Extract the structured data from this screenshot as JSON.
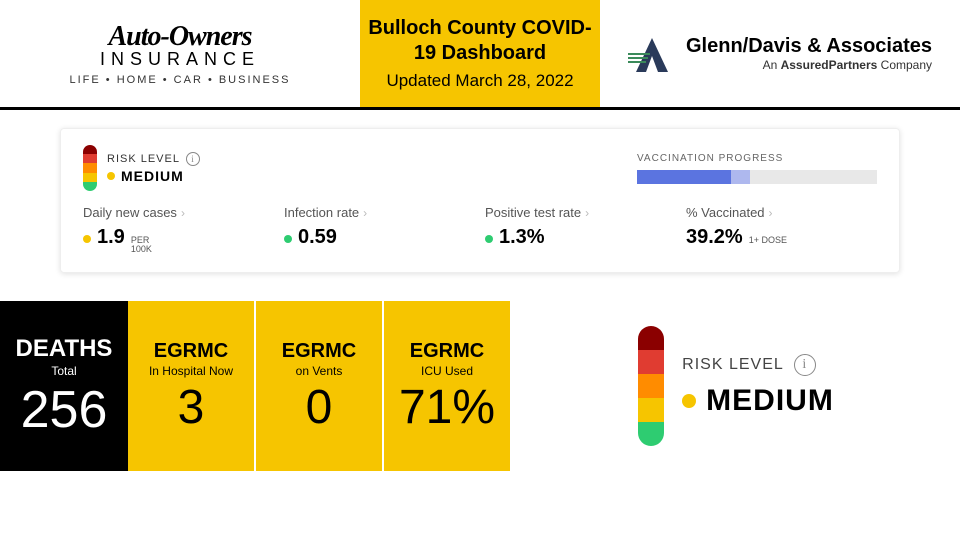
{
  "colors": {
    "accent_yellow": "#f6c500",
    "black": "#000000",
    "risk_segments": [
      "#8b0000",
      "#e03c31",
      "#ff8c00",
      "#f6c500",
      "#2ecc71"
    ],
    "vax_primary": "#5b74e0",
    "vax_secondary": "#aeb8ee",
    "vax_bg": "#e8e8e8",
    "dot_yellow": "#f6c500",
    "dot_green": "#2ecc71"
  },
  "header": {
    "sponsor_left": {
      "brand": "Auto-Owners",
      "sub": "INSURANCE",
      "tag": "LIFE • HOME • CAR • BUSINESS"
    },
    "title": "Bulloch County COVID-19 Dashboard",
    "updated": "Updated March 28, 2022",
    "sponsor_right": {
      "main": "Glenn/Davis & Associates",
      "sub_prefix": "An ",
      "sub_bold": "AssuredPartners",
      "sub_suffix": " Company"
    }
  },
  "risk": {
    "label": "RISK LEVEL",
    "level": "MEDIUM",
    "dot_color": "#f6c500"
  },
  "vaccination": {
    "label": "VACCINATION PROGRESS",
    "primary_pct": 39.2,
    "secondary_pct": 8
  },
  "metrics": [
    {
      "label": "Daily new cases",
      "value": "1.9",
      "unit_top": "PER",
      "unit_bottom": "100K",
      "dot": "#f6c500"
    },
    {
      "label": "Infection rate",
      "value": "0.59",
      "dot": "#2ecc71"
    },
    {
      "label": "Positive test rate",
      "value": "1.3%",
      "dot": "#2ecc71"
    },
    {
      "label": "% Vaccinated",
      "value": "39.2%",
      "unit_inline": "1+ DOSE"
    }
  ],
  "stats": [
    {
      "kind": "black",
      "title1": "DEATHS",
      "title2": "Total",
      "value": "256"
    },
    {
      "kind": "yellow",
      "title1": "EGRMC",
      "title2": "In Hospital Now",
      "value": "3"
    },
    {
      "kind": "yellow",
      "title1": "EGRMC",
      "title2": "on Vents",
      "value": "0"
    },
    {
      "kind": "yellow",
      "title1": "EGRMC",
      "title2": "ICU Used",
      "value": "71%"
    }
  ]
}
